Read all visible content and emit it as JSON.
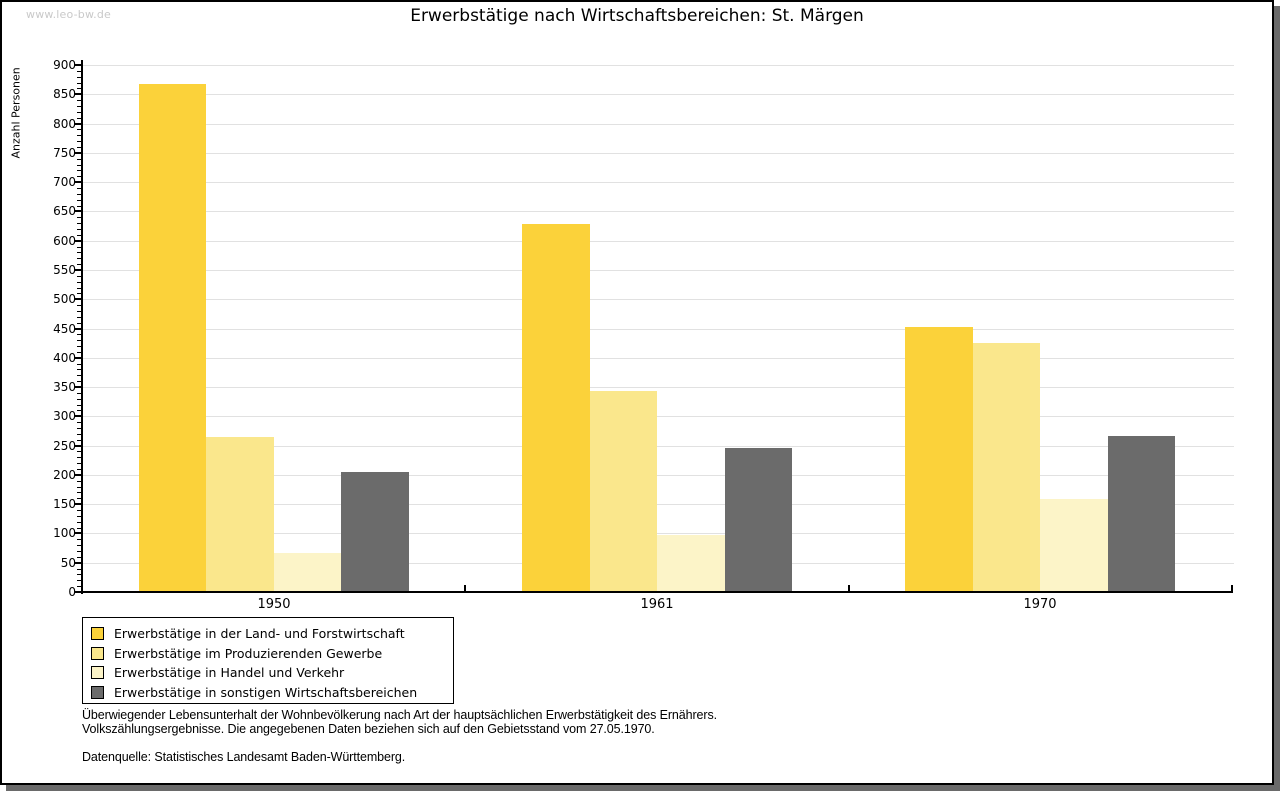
{
  "watermark": "www.leo-bw.de",
  "chart_data": {
    "type": "bar",
    "title": "Erwerbstätige nach Wirtschaftsbereichen: St. Märgen",
    "ylabel": "Anzahl Personen",
    "categories": [
      "1950",
      "1961",
      "1970"
    ],
    "series": [
      {
        "name": "Erwerbstätige in der Land- und Forstwirtschaft",
        "color": "#FBD23A",
        "values": [
          868,
          628,
          453
        ]
      },
      {
        "name": "Erwerbstätige im Produzierenden Gewerbe",
        "color": "#FAE78C",
        "values": [
          264,
          343,
          426
        ]
      },
      {
        "name": "Erwerbstätige in Handel und Verkehr",
        "color": "#FCF4C8",
        "values": [
          67,
          97,
          158
        ]
      },
      {
        "name": "Erwerbstätige in sonstigen Wirtschaftsbereichen",
        "color": "#6B6B6B",
        "values": [
          205,
          246,
          266
        ]
      }
    ],
    "ylim": [
      0,
      900
    ],
    "ytick_step": 50,
    "yminor_step": 10,
    "grid": true,
    "legend_position": "bottom-left",
    "axis_color": "#000000",
    "grid_color": "#e1e1e1"
  },
  "notes": {
    "line1": "Überwiegender Lebensunterhalt der Wohnbevölkerung nach Art der hauptsächlichen Erwerbstätigkeit des Ernährers.",
    "line2": "Volkszählungsergebnisse. Die angegebenen Daten beziehen sich auf den Gebietsstand vom 27.05.1970.",
    "source": "Datenquelle: Statistisches Landesamt Baden-Württemberg."
  }
}
